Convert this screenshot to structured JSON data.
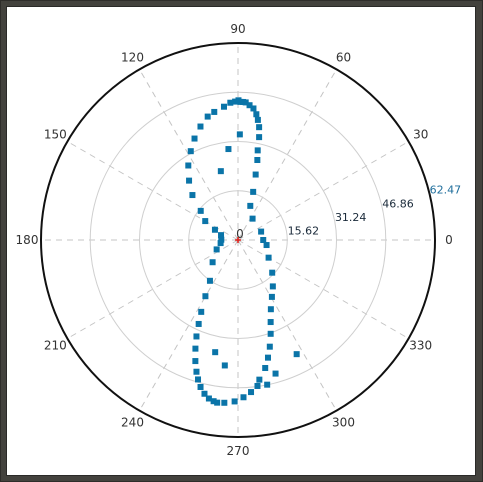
{
  "chart_data": {
    "type": "scatter",
    "coordinate_system": "polar",
    "title": "",
    "angle_unit": "degrees",
    "angle_ticks": [
      "0",
      "30",
      "60",
      "90",
      "120",
      "150",
      "180",
      "210",
      "240",
      "270",
      "300",
      "330"
    ],
    "radial_ticks": [
      "15.62",
      "31.24",
      "46.86",
      "62.47"
    ],
    "rlim": [
      0,
      62.47
    ],
    "grid": true,
    "marker": "square",
    "marker_color": "#0a74a8",
    "origin_marker_color": "#e0201a",
    "origin_label": "0",
    "series": [
      {
        "points": [
          {
            "theta": 89.0,
            "r": 43.8
          },
          {
            "theta": 87.9,
            "r": 43.8
          },
          {
            "theta": 86.8,
            "r": 43.7
          },
          {
            "theta": 85.1,
            "r": 42.9
          },
          {
            "theta": 83.3,
            "r": 42.0
          },
          {
            "theta": 81.7,
            "r": 40.3
          },
          {
            "theta": 80.6,
            "r": 38.6
          },
          {
            "theta": 79.4,
            "r": 36.4
          },
          {
            "theta": 78.4,
            "r": 33.3
          },
          {
            "theta": 77.6,
            "r": 29.1
          },
          {
            "theta": 76.4,
            "r": 26.1
          },
          {
            "theta": 74.9,
            "r": 21.5
          },
          {
            "theta": 72.5,
            "r": 16.0
          },
          {
            "theta": 70.2,
            "r": 11.5
          },
          {
            "theta": 55.7,
            "r": 8.2
          },
          {
            "theta": 20.0,
            "r": 7.8
          },
          {
            "theta": 0.0,
            "r": 8.0
          },
          {
            "theta": -10.0,
            "r": 9.2
          },
          {
            "theta": -30.0,
            "r": 11.2
          },
          {
            "theta": -43.7,
            "r": 15.0
          },
          {
            "theta": -53.1,
            "r": 18.4
          },
          {
            "theta": -59.2,
            "r": 21.0
          },
          {
            "theta": -64.6,
            "r": 24.3
          },
          {
            "theta": -68.3,
            "r": 28.0
          },
          {
            "theta": -70.8,
            "r": 31.5
          },
          {
            "theta": -73.4,
            "r": 35.3
          },
          {
            "theta": -75.7,
            "r": 38.5
          },
          {
            "theta": -78.0,
            "r": 41.5
          },
          {
            "theta": -81.3,
            "r": 44.8
          },
          {
            "theta": -82.4,
            "r": 46.7
          },
          {
            "theta": -85.1,
            "r": 48.4
          },
          {
            "theta": -88.0,
            "r": 49.9
          },
          {
            "theta": -91.2,
            "r": 51.2
          },
          {
            "theta": -94.8,
            "r": 51.8
          },
          {
            "theta": -97.3,
            "r": 52.0
          },
          {
            "theta": -98.6,
            "r": 51.7
          },
          {
            "theta": -100.4,
            "r": 51.1
          },
          {
            "theta": -102.3,
            "r": 49.9
          },
          {
            "theta": -104.3,
            "r": 48.1
          },
          {
            "theta": -106.0,
            "r": 46.0
          },
          {
            "theta": -107.5,
            "r": 43.8
          },
          {
            "theta": -109.4,
            "r": 40.7
          },
          {
            "theta": -111.4,
            "r": 37.0
          },
          {
            "theta": -113.3,
            "r": 33.3
          },
          {
            "theta": -115.1,
            "r": 29.4
          },
          {
            "theta": -117.1,
            "r": 25.6
          },
          {
            "theta": -120.1,
            "r": 20.6
          },
          {
            "theta": -124.5,
            "r": 15.7
          },
          {
            "theta": -138.8,
            "r": 10.7
          },
          {
            "theta": -156.2,
            "r": 7.4
          },
          {
            "theta": -170.0,
            "r": 5.6
          },
          {
            "theta": -181.0,
            "r": 5.3
          },
          {
            "theta": 164.0,
            "r": 5.6
          },
          {
            "theta": 156.0,
            "r": 8.0
          },
          {
            "theta": 150.0,
            "r": 12.0
          },
          {
            "theta": 142.0,
            "r": 15.0
          },
          {
            "theta": 135.4,
            "r": 20.3
          },
          {
            "theta": 129.5,
            "r": 24.4
          },
          {
            "theta": 123.7,
            "r": 28.4
          },
          {
            "theta": 118.0,
            "r": 31.9
          },
          {
            "theta": 113.2,
            "r": 35.0
          },
          {
            "theta": 108.3,
            "r": 37.9
          },
          {
            "theta": 103.8,
            "r": 40.3
          },
          {
            "theta": 100.5,
            "r": 41.3
          },
          {
            "theta": 96.0,
            "r": 42.5
          },
          {
            "theta": 93.2,
            "r": 43.6
          },
          {
            "theta": 91.2,
            "r": 43.9
          },
          {
            "theta": 89.8,
            "r": 44.3
          },
          {
            "theta": 89.0,
            "r": 33.5
          },
          {
            "theta": 96.0,
            "r": 29.0
          },
          {
            "theta": 104.0,
            "r": 22.5
          },
          {
            "theta": -96.0,
            "r": 40.0
          },
          {
            "theta": -101.5,
            "r": 36.3
          },
          {
            "theta": -62.8,
            "r": 40.7
          },
          {
            "theta": -74.3,
            "r": 44.0
          },
          {
            "theta": -78.6,
            "r": 46.8
          }
        ]
      }
    ]
  }
}
